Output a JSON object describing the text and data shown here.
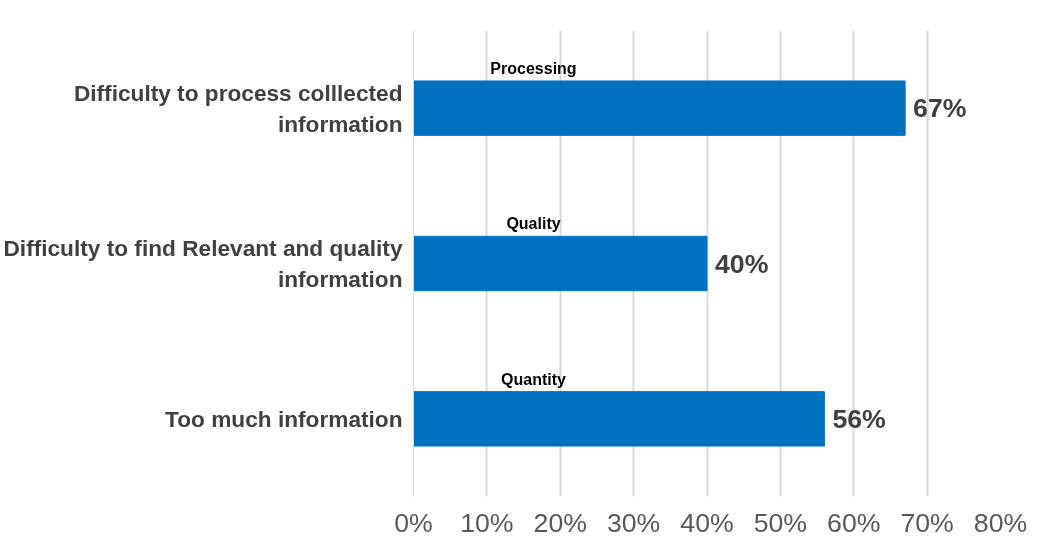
{
  "chart_data": {
    "type": "bar",
    "orientation": "horizontal",
    "categories": [
      "Difficulty to process colllected information",
      "Difficulty to find Relevant and quality information",
      "Too much information"
    ],
    "values": [
      67,
      40,
      56
    ],
    "color": "#0070c0",
    "value_labels": [
      "67%",
      "40%",
      "56%"
    ],
    "xlim": [
      0,
      80
    ],
    "xticks": [
      {
        "value": 0,
        "label": "0%"
      },
      {
        "value": 10,
        "label": "10%"
      },
      {
        "value": 20,
        "label": "20%"
      },
      {
        "value": 30,
        "label": "30%"
      },
      {
        "value": 40,
        "label": "40%"
      },
      {
        "value": 50,
        "label": "50%"
      },
      {
        "value": 60,
        "label": "60%"
      },
      {
        "value": 70,
        "label": "70%"
      },
      {
        "value": 80,
        "label": "80%"
      }
    ],
    "grid": "x",
    "annotations": [
      "Processing",
      "Quality",
      "Quantity"
    ]
  }
}
